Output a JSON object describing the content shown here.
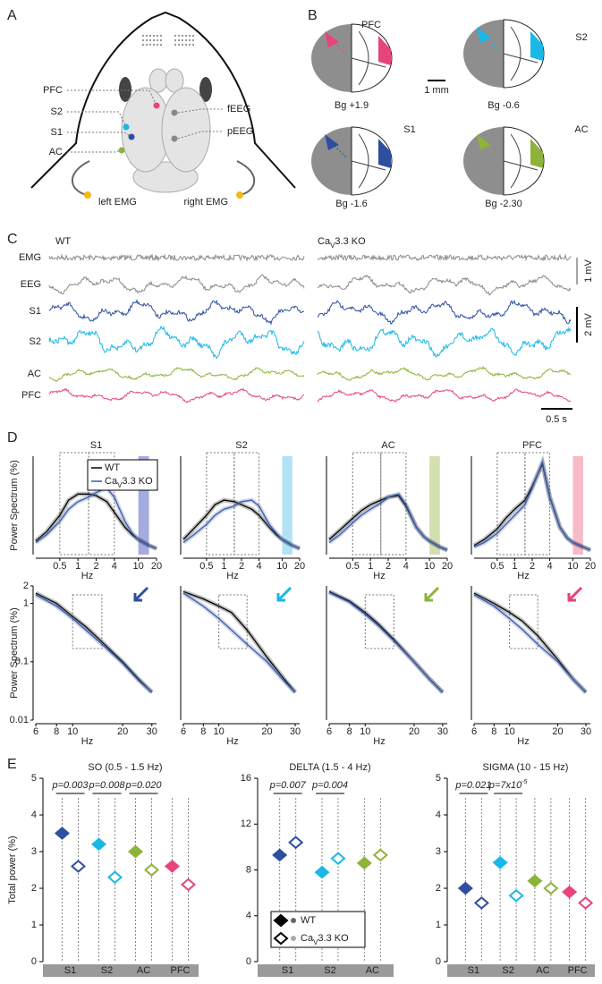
{
  "panel_labels": [
    "A",
    "B",
    "C",
    "D",
    "E"
  ],
  "panel_a": {
    "sites": [
      {
        "label": "PFC",
        "color": "#e6457a"
      },
      {
        "label": "S2",
        "color": "#1ab8e6"
      },
      {
        "label": "S1",
        "color": "#2e4fa0"
      },
      {
        "label": "AC",
        "color": "#8db33a"
      }
    ],
    "eeg": [
      "fEEG",
      "pEEG"
    ],
    "emg": [
      "left EMG",
      "right EMG"
    ]
  },
  "panel_b": {
    "sections": [
      {
        "region": "PFC",
        "color": "#e6457a",
        "level": "Bg +1.9"
      },
      {
        "region": "S2",
        "color": "#1ab8e6",
        "level": "Bg -0.6"
      },
      {
        "region": "S1",
        "color": "#2e4fa0",
        "level": "Bg -1.6"
      },
      {
        "region": "AC",
        "color": "#8db33a",
        "level": "Bg -2.30"
      }
    ],
    "scale": "1 mm"
  },
  "panel_c": {
    "conditions": [
      "WT",
      {
        "base": "Ca",
        "sub": "V",
        "rest": "3.3 KO"
      }
    ],
    "channels": [
      {
        "label": "EMG",
        "color": "#8a8a8a"
      },
      {
        "label": "EEG",
        "color": "#8a8a8a"
      },
      {
        "label": "S1",
        "color": "#2e4fa0"
      },
      {
        "label": "S2",
        "color": "#1ab8e6"
      },
      {
        "label": "AC",
        "color": "#8db33a"
      },
      {
        "label": "PFC",
        "color": "#e6457a"
      }
    ],
    "scales": [
      "1 mV",
      "2 mV",
      "0.5 s"
    ]
  },
  "chart_data": [
    {
      "type": "line",
      "title": "S1",
      "title_color": "#2e4fa0",
      "log_x": true,
      "x": [
        0.2,
        0.3,
        0.5,
        0.7,
        1,
        1.5,
        2,
        3,
        4,
        6,
        8,
        10,
        15,
        20
      ],
      "xlim": [
        0.2,
        20
      ],
      "xticks": [
        0.5,
        1,
        2,
        4,
        10,
        20
      ],
      "ylim": [
        0,
        6.5
      ],
      "x_label": "Hz",
      "y_label": "Power Spectrum (%)",
      "bands": [
        [
          0.5,
          1.5
        ],
        [
          1.5,
          4
        ]
      ],
      "sigma_band": [
        10,
        15
      ],
      "sigma_color": "#8f96d6",
      "legend": "top-right",
      "series": [
        {
          "name": "WT",
          "color": "#000000",
          "values": [
            0.9,
            1.5,
            2.6,
            3.6,
            4.0,
            4.0,
            3.9,
            3.5,
            2.8,
            1.8,
            1.3,
            1.0,
            0.6,
            0.4
          ]
        },
        {
          "name": {
            "base": "Ca",
            "sub": "V",
            "rest": "3.3 KO"
          },
          "color": "#3a5ba8",
          "values": [
            0.8,
            1.3,
            2.2,
            3.0,
            3.5,
            3.8,
            4.1,
            4.4,
            3.8,
            2.2,
            1.4,
            1.0,
            0.6,
            0.4
          ]
        }
      ]
    },
    {
      "type": "line",
      "title": "S2",
      "title_color": "#1ab8e6",
      "log_x": true,
      "x": [
        0.2,
        0.3,
        0.5,
        0.7,
        1,
        1.5,
        2,
        3,
        4,
        6,
        8,
        10,
        15,
        20
      ],
      "xlim": [
        0.2,
        20
      ],
      "xticks": [
        0.5,
        1,
        2,
        4,
        10,
        20
      ],
      "ylim": [
        0,
        6.5
      ],
      "x_label": "Hz",
      "bands": [
        [
          0.5,
          1.5
        ],
        [
          1.5,
          4
        ]
      ],
      "sigma_band": [
        10,
        15
      ],
      "sigma_color": "#9fdcf3",
      "series": [
        {
          "color": "#000000",
          "values": [
            1.0,
            1.7,
            2.6,
            3.3,
            3.6,
            3.5,
            3.3,
            3.0,
            2.6,
            1.8,
            1.3,
            1.0,
            0.6,
            0.4
          ]
        },
        {
          "color": "#3a5ba8",
          "values": [
            0.8,
            1.3,
            2.0,
            2.6,
            3.0,
            3.2,
            3.5,
            3.6,
            3.2,
            2.0,
            1.4,
            1.0,
            0.6,
            0.4
          ]
        }
      ]
    },
    {
      "type": "line",
      "title": "AC",
      "title_color": "#8db33a",
      "log_x": true,
      "x": [
        0.2,
        0.3,
        0.5,
        0.7,
        1,
        1.5,
        2,
        3,
        4,
        6,
        8,
        10,
        15,
        20
      ],
      "xlim": [
        0.2,
        20
      ],
      "xticks": [
        0.5,
        1,
        2,
        4,
        10,
        20
      ],
      "ylim": [
        0,
        6.5
      ],
      "x_label": "Hz",
      "bands": [
        [
          0.5,
          1.5
        ],
        [
          1.5,
          4
        ]
      ],
      "sigma_band": [
        10,
        15
      ],
      "sigma_color": "#c9d79c",
      "series": [
        {
          "color": "#000000",
          "values": [
            1.0,
            1.6,
            2.4,
            2.9,
            3.3,
            3.6,
            3.8,
            3.9,
            3.2,
            1.8,
            1.2,
            0.9,
            0.5,
            0.3
          ]
        },
        {
          "color": "#3a5ba8",
          "values": [
            0.8,
            1.3,
            2.1,
            2.6,
            3.0,
            3.4,
            3.8,
            4.0,
            3.3,
            1.8,
            1.2,
            0.9,
            0.5,
            0.3
          ]
        }
      ]
    },
    {
      "type": "line",
      "title": "PFC",
      "title_color": "#e6457a",
      "log_x": true,
      "x": [
        0.2,
        0.3,
        0.5,
        0.7,
        1,
        1.5,
        2,
        3,
        4,
        6,
        8,
        10,
        15,
        20
      ],
      "xlim": [
        0.2,
        20
      ],
      "xticks": [
        0.5,
        1,
        2,
        4,
        10,
        20
      ],
      "ylim": [
        0,
        6.5
      ],
      "x_label": "Hz",
      "bands": [
        [
          0.5,
          1.5
        ],
        [
          1.5,
          4
        ]
      ],
      "sigma_band": [
        10,
        15
      ],
      "sigma_color": "#f5a9b9",
      "series": [
        {
          "color": "#000000",
          "values": [
            0.6,
            1.0,
            1.7,
            2.4,
            3.0,
            3.6,
            4.5,
            6.0,
            3.8,
            1.8,
            1.1,
            0.8,
            0.5,
            0.3
          ]
        },
        {
          "color": "#3a5ba8",
          "values": [
            0.5,
            0.8,
            1.4,
            2.0,
            2.6,
            3.3,
            4.4,
            6.1,
            3.8,
            1.8,
            1.1,
            0.8,
            0.5,
            0.3
          ]
        }
      ]
    },
    {
      "type": "line",
      "log_x": true,
      "log_y": true,
      "x": [
        6,
        8,
        10,
        12,
        15,
        20,
        25,
        30
      ],
      "xlim": [
        6,
        32
      ],
      "xticks": [
        6,
        8,
        10,
        20,
        30
      ],
      "ylim": [
        0.01,
        2
      ],
      "yticks": [
        0.01,
        0.1,
        1,
        2
      ],
      "x_label": "Hz",
      "y_label": "Power Spectrum (%)",
      "bands": [
        [
          10,
          15
        ]
      ],
      "arrow_color": "#2e4fa0",
      "series": [
        {
          "color": "#000000",
          "values": [
            1.5,
            1.0,
            0.6,
            0.4,
            0.22,
            0.1,
            0.05,
            0.03
          ]
        },
        {
          "color": "#3a5ba8",
          "values": [
            1.4,
            0.9,
            0.55,
            0.35,
            0.2,
            0.095,
            0.048,
            0.03
          ]
        }
      ]
    },
    {
      "type": "line",
      "log_x": true,
      "log_y": true,
      "x": [
        6,
        8,
        10,
        12,
        15,
        20,
        25,
        30
      ],
      "xlim": [
        6,
        32
      ],
      "xticks": [
        6,
        8,
        10,
        20,
        30
      ],
      "ylim": [
        0.01,
        2
      ],
      "x_label": "Hz",
      "bands": [
        [
          10,
          15
        ]
      ],
      "arrow_color": "#1ab8e6",
      "series": [
        {
          "color": "#000000",
          "values": [
            1.6,
            1.2,
            0.9,
            0.7,
            0.35,
            0.12,
            0.055,
            0.03
          ]
        },
        {
          "color": "#3a5ba8",
          "values": [
            1.5,
            0.9,
            0.55,
            0.35,
            0.2,
            0.1,
            0.05,
            0.03
          ]
        }
      ]
    },
    {
      "type": "line",
      "log_x": true,
      "log_y": true,
      "x": [
        6,
        8,
        10,
        12,
        15,
        20,
        25,
        30
      ],
      "xlim": [
        6,
        32
      ],
      "xticks": [
        6,
        8,
        10,
        20,
        30
      ],
      "ylim": [
        0.01,
        2
      ],
      "x_label": "Hz",
      "bands": [
        [
          10,
          15
        ]
      ],
      "arrow_color": "#8db33a",
      "series": [
        {
          "color": "#000000",
          "values": [
            1.6,
            1.1,
            0.7,
            0.45,
            0.24,
            0.1,
            0.05,
            0.03
          ]
        },
        {
          "color": "#3a5ba8",
          "values": [
            1.55,
            1.05,
            0.65,
            0.42,
            0.23,
            0.1,
            0.05,
            0.03
          ]
        }
      ]
    },
    {
      "type": "line",
      "log_x": true,
      "log_y": true,
      "x": [
        6,
        8,
        10,
        12,
        15,
        20,
        25,
        30
      ],
      "xlim": [
        6,
        32
      ],
      "xticks": [
        6,
        8,
        10,
        20,
        30
      ],
      "ylim": [
        0.01,
        2
      ],
      "x_label": "Hz",
      "bands": [
        [
          10,
          15
        ]
      ],
      "arrow_color": "#e6457a",
      "series": [
        {
          "color": "#000000",
          "values": [
            1.5,
            1.0,
            0.7,
            0.5,
            0.28,
            0.11,
            0.05,
            0.03
          ]
        },
        {
          "color": "#3a5ba8",
          "values": [
            1.4,
            0.9,
            0.55,
            0.36,
            0.2,
            0.1,
            0.05,
            0.03
          ]
        }
      ]
    },
    {
      "type": "dot",
      "title": "SO (0.5 - 1.5 Hz)",
      "categories": [
        "S1",
        "S2",
        "AC",
        "PFC"
      ],
      "colors": [
        "#2e4fa0",
        "#1ab8e6",
        "#8db33a",
        "#e6457a"
      ],
      "ylim": [
        0,
        5
      ],
      "yticks": [
        0,
        1,
        2,
        3,
        4,
        5
      ],
      "y_label": "Total power (%)",
      "p_values": [
        "p=0.003",
        "p=0.008",
        "p=0.020",
        null
      ],
      "series": [
        {
          "marker": "filled",
          "values": [
            3.5,
            3.2,
            3.0,
            2.6
          ]
        },
        {
          "marker": "open",
          "values": [
            2.6,
            2.3,
            2.5,
            2.1
          ]
        }
      ]
    },
    {
      "type": "dot",
      "title": "DELTA (1.5 - 4 Hz)",
      "categories": [
        "S1",
        "S2",
        "AC"
      ],
      "colors": [
        "#2e4fa0",
        "#1ab8e6",
        "#8db33a"
      ],
      "ylim": [
        0,
        16
      ],
      "yticks": [
        0,
        4,
        8,
        12,
        16
      ],
      "legend": "bottom-left",
      "p_values": [
        "p=0.007",
        "p=0.004",
        null
      ],
      "series": [
        {
          "name": "WT",
          "marker": "filled",
          "values": [
            9.3,
            7.8,
            8.6
          ]
        },
        {
          "name": {
            "base": "Ca",
            "sub": "V",
            "rest": "3.3 KO"
          },
          "marker": "open",
          "values": [
            10.4,
            9.0,
            9.3
          ]
        }
      ]
    },
    {
      "type": "dot",
      "title": "SIGMA (10 - 15 Hz)",
      "categories": [
        "S1",
        "S2",
        "AC",
        "PFC"
      ],
      "colors": [
        "#2e4fa0",
        "#1ab8e6",
        "#8db33a",
        "#e6457a"
      ],
      "ylim": [
        0,
        5
      ],
      "yticks": [
        0,
        1,
        2,
        3,
        4,
        5
      ],
      "p_values": [
        "p=0.021",
        {
          "base": "p=7x10",
          "sup": "-5"
        },
        null,
        null
      ],
      "series": [
        {
          "marker": "filled",
          "values": [
            2.0,
            2.7,
            2.2,
            1.9
          ]
        },
        {
          "marker": "open",
          "values": [
            1.6,
            1.8,
            2.0,
            1.6
          ]
        }
      ]
    }
  ]
}
